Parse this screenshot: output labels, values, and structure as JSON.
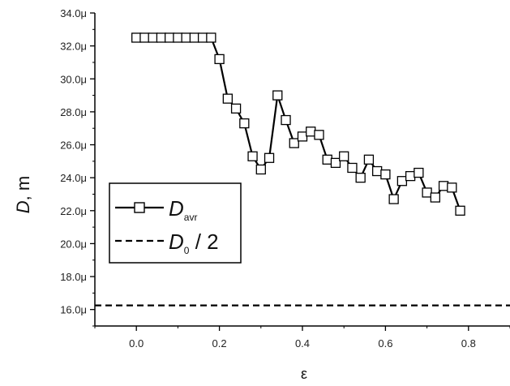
{
  "chart_data": {
    "type": "line",
    "xlabel": "ε",
    "ylabel_italic": "D",
    "ylabel_unit": ", m",
    "xlim": [
      -0.1,
      0.9
    ],
    "ylim": [
      15.0,
      34.0
    ],
    "x_ticks": [
      0.0,
      0.2,
      0.4,
      0.6,
      0.8
    ],
    "x_tick_labels": [
      "0.0",
      "0.2",
      "0.4",
      "0.6",
      "0.8"
    ],
    "y_ticks": [
      16,
      18,
      20,
      22,
      24,
      26,
      28,
      30,
      32,
      34
    ],
    "y_tick_labels": [
      "16.0μ",
      "18.0μ",
      "20.0μ",
      "22.0μ",
      "24.0μ",
      "26.0μ",
      "28.0μ",
      "30.0μ",
      "32.0μ",
      "34.0μ"
    ],
    "y_unit_multiplier": "1e-6",
    "grid": false,
    "legend_position": "left-middle",
    "series": [
      {
        "name_main": "D",
        "name_sub": "avr",
        "style": "solid line with open square markers",
        "color": "#000000",
        "x": [
          0.0,
          0.02,
          0.04,
          0.06,
          0.08,
          0.1,
          0.12,
          0.14,
          0.16,
          0.18,
          0.2,
          0.22,
          0.24,
          0.26,
          0.28,
          0.3,
          0.32,
          0.34,
          0.36,
          0.38,
          0.4,
          0.42,
          0.44,
          0.46,
          0.48,
          0.5,
          0.52,
          0.54,
          0.56,
          0.58,
          0.6,
          0.62,
          0.64,
          0.66,
          0.68,
          0.7,
          0.72,
          0.74,
          0.76,
          0.78
        ],
        "y": [
          32.5,
          32.5,
          32.5,
          32.5,
          32.5,
          32.5,
          32.5,
          32.5,
          32.5,
          32.5,
          31.2,
          28.8,
          28.2,
          27.3,
          25.3,
          24.5,
          25.2,
          29.0,
          27.5,
          26.1,
          26.5,
          26.8,
          26.6,
          25.1,
          24.9,
          25.3,
          24.6,
          24.0,
          25.1,
          24.4,
          24.2,
          22.7,
          23.8,
          24.1,
          24.3,
          23.1,
          22.8,
          23.5,
          23.4,
          22.0
        ]
      },
      {
        "name_main": "D",
        "name_sub": "0",
        "name_suffix": " / 2",
        "style": "dashed line",
        "color": "#000000",
        "y_constant": 16.25
      }
    ]
  }
}
